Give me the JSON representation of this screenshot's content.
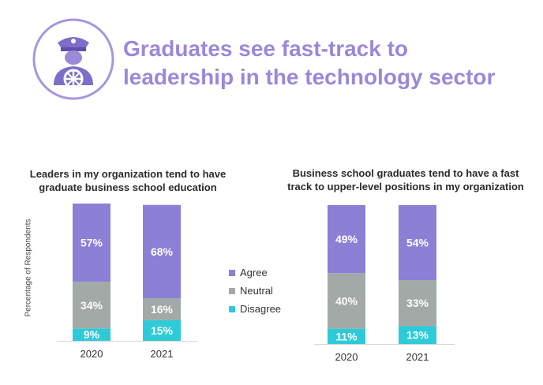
{
  "header": {
    "title_line1": "Graduates see fast-track to",
    "title_line2": "leadership in the technology sector",
    "icon": "captain-icon"
  },
  "y_axis_label": "Percentage of Respondents",
  "legend": [
    {
      "label": "Agree",
      "color": "#8b7fd6"
    },
    {
      "label": "Neutral",
      "color": "#a3a9a6"
    },
    {
      "label": "Disagree",
      "color": "#2ecad8"
    }
  ],
  "chart_data": [
    {
      "type": "bar",
      "stacked": true,
      "title_lines": [
        "Leaders in my organization tend to have",
        "graduate business school education"
      ],
      "categories": [
        "2020",
        "2021"
      ],
      "series": [
        {
          "name": "Disagree",
          "values": [
            9,
            15
          ],
          "labels": [
            "9%",
            "15%"
          ]
        },
        {
          "name": "Neutral",
          "values": [
            34,
            16
          ],
          "labels": [
            "34%",
            "16%"
          ]
        },
        {
          "name": "Agree",
          "values": [
            57,
            68
          ],
          "labels": [
            "57%",
            "68%"
          ]
        }
      ],
      "ylim": [
        0,
        100
      ]
    },
    {
      "type": "bar",
      "stacked": true,
      "title_lines": [
        "Business school graduates tend to have a fast",
        "track to upper-level positions in my organization"
      ],
      "categories": [
        "2020",
        "2021"
      ],
      "series": [
        {
          "name": "Disagree",
          "values": [
            11,
            13
          ],
          "labels": [
            "11%",
            "13%"
          ]
        },
        {
          "name": "Neutral",
          "values": [
            40,
            33
          ],
          "labels": [
            "40%",
            "33%"
          ]
        },
        {
          "name": "Agree",
          "values": [
            49,
            54
          ],
          "labels": [
            "49%",
            "54%"
          ]
        }
      ],
      "ylim": [
        0,
        100
      ]
    }
  ]
}
